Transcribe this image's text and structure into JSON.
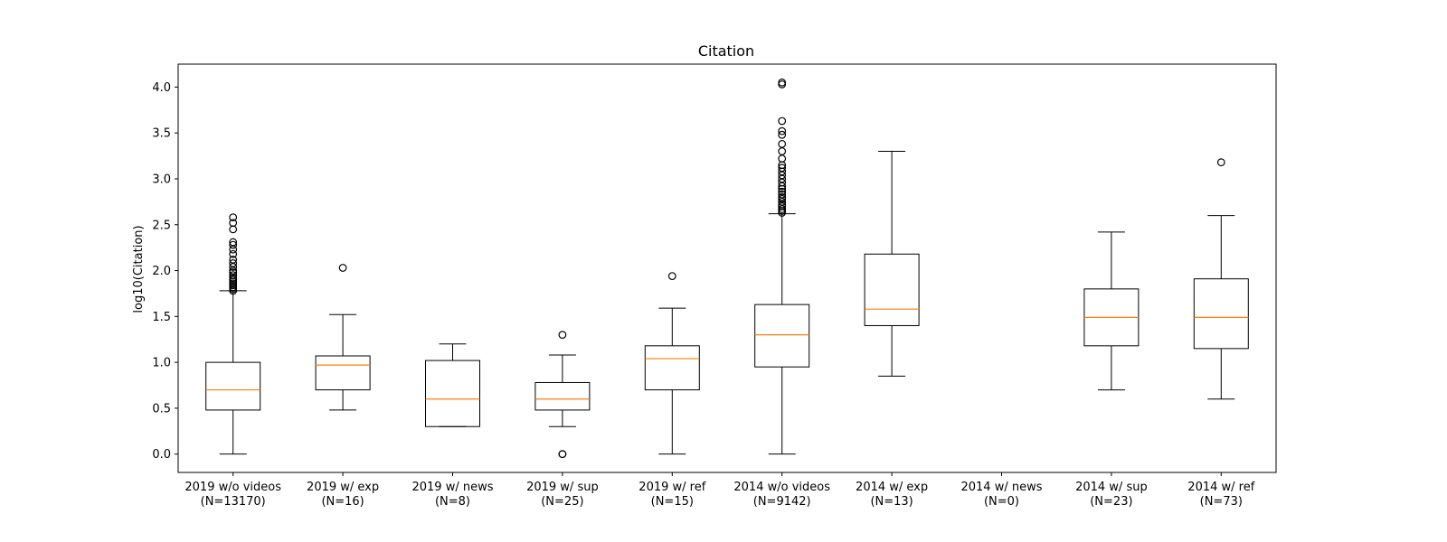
{
  "chart_data": {
    "type": "box",
    "title": "Citation",
    "xlabel": "",
    "ylabel": "log10(Citation)",
    "ylim": [
      -0.2,
      4.25
    ],
    "yticks": [
      "0.0",
      "0.5",
      "1.0",
      "1.5",
      "2.0",
      "2.5",
      "3.0",
      "3.5",
      "4.0"
    ],
    "grid": false,
    "colors": {
      "box": "#000000",
      "median": "#ff7f0e"
    },
    "categories": [
      [
        "2019 w/o videos",
        "(N=13170)"
      ],
      [
        "2019 w/ exp",
        "(N=16)"
      ],
      [
        "2019 w/ news",
        "(N=8)"
      ],
      [
        "2019 w/ sup",
        "(N=25)"
      ],
      [
        "2019 w/ ref",
        "(N=15)"
      ],
      [
        "2014 w/o videos",
        "(N=9142)"
      ],
      [
        "2014 w/ exp",
        "(N=13)"
      ],
      [
        "2014 w/ news",
        "(N=0)"
      ],
      [
        "2014 w/ sup",
        "(N=23)"
      ],
      [
        "2014 w/ ref",
        "(N=73)"
      ]
    ],
    "boxes": [
      {
        "whisker_low": 0.0,
        "q1": 0.48,
        "median": 0.7,
        "q3": 1.0,
        "whisker_high": 1.78,
        "outliers": [
          1.78,
          1.8,
          1.82,
          1.84,
          1.86,
          1.88,
          1.9,
          1.92,
          1.95,
          1.98,
          2.0,
          2.04,
          2.08,
          2.12,
          2.18,
          2.23,
          2.28,
          2.31,
          2.45,
          2.52,
          2.58
        ]
      },
      {
        "whisker_low": 0.48,
        "q1": 0.7,
        "median": 0.97,
        "q3": 1.07,
        "whisker_high": 1.52,
        "outliers": [
          2.03
        ]
      },
      {
        "whisker_low": 0.3,
        "q1": 0.3,
        "median": 0.6,
        "q3": 1.02,
        "whisker_high": 1.2,
        "outliers": []
      },
      {
        "whisker_low": 0.3,
        "q1": 0.48,
        "median": 0.6,
        "q3": 0.78,
        "whisker_high": 1.08,
        "outliers": [
          0.0,
          0.0,
          1.3
        ]
      },
      {
        "whisker_low": 0.0,
        "q1": 0.7,
        "median": 1.04,
        "q3": 1.18,
        "whisker_high": 1.59,
        "outliers": [
          1.94
        ]
      },
      {
        "whisker_low": 0.0,
        "q1": 0.95,
        "median": 1.3,
        "q3": 1.63,
        "whisker_high": 2.62,
        "outliers": [
          2.63,
          2.65,
          2.67,
          2.7,
          2.72,
          2.75,
          2.78,
          2.8,
          2.83,
          2.86,
          2.89,
          2.92,
          2.96,
          3.0,
          3.04,
          3.08,
          3.12,
          3.15,
          3.22,
          3.3,
          3.38,
          3.48,
          3.52,
          3.63,
          4.03,
          4.05
        ]
      },
      {
        "whisker_low": 0.85,
        "q1": 1.4,
        "median": 1.58,
        "q3": 2.18,
        "whisker_high": 3.3,
        "outliers": []
      },
      null,
      {
        "whisker_low": 0.7,
        "q1": 1.18,
        "median": 1.49,
        "q3": 1.8,
        "whisker_high": 2.42,
        "outliers": []
      },
      {
        "whisker_low": 0.6,
        "q1": 1.15,
        "median": 1.49,
        "q3": 1.91,
        "whisker_high": 2.6,
        "outliers": [
          3.18
        ]
      }
    ]
  }
}
